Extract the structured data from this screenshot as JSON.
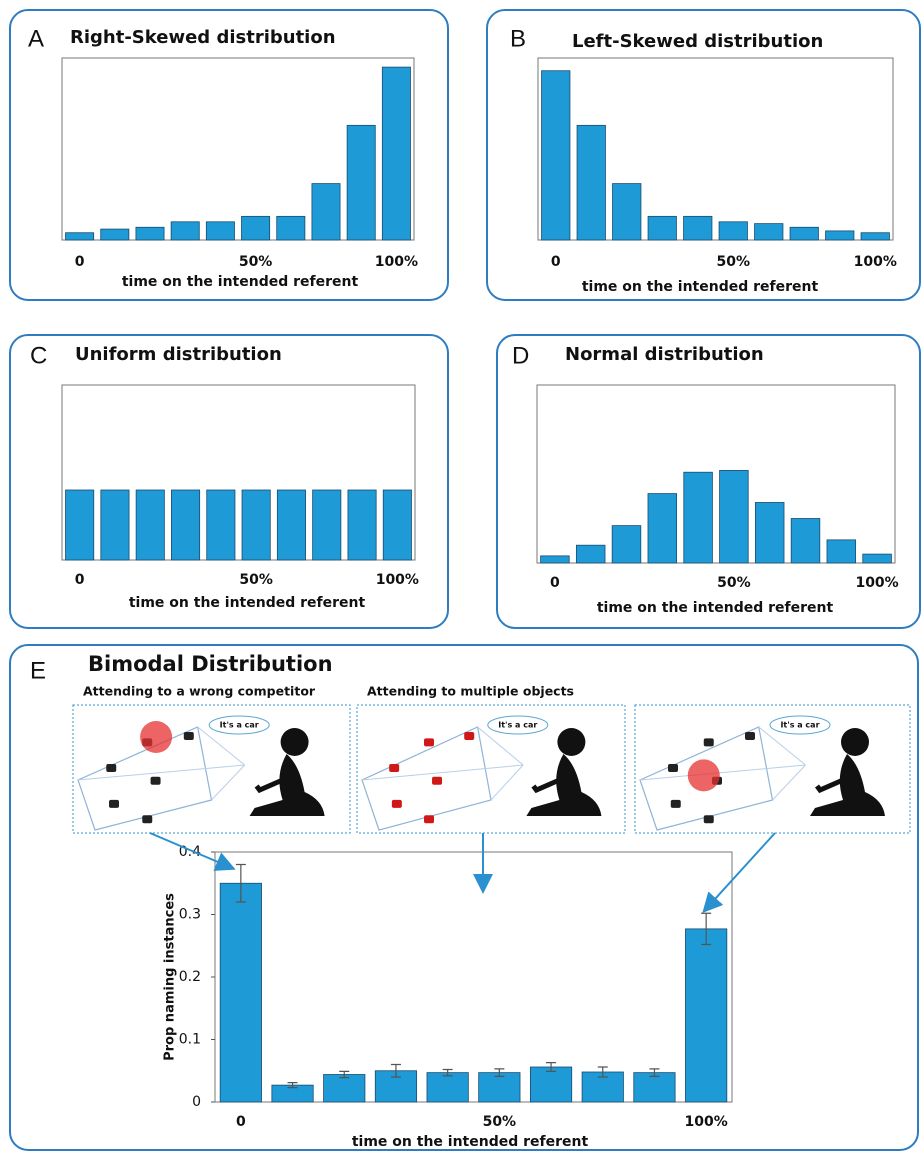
{
  "chart_data": [
    {
      "type": "bar",
      "label": "A",
      "title": "Right-Skewed distribution",
      "xlabel": "time on the intended referent",
      "categories": [
        "0",
        null,
        null,
        null,
        null,
        "50%",
        null,
        null,
        null,
        "100%"
      ],
      "values": [
        4,
        6,
        7,
        10,
        10,
        13,
        13,
        31,
        63,
        95
      ],
      "color": "#1e9bd7",
      "ylim": [
        0,
        100
      ]
    },
    {
      "type": "bar",
      "label": "B",
      "title": "Left-Skewed distribution",
      "xlabel": "time on the intended referent",
      "categories": [
        "0",
        null,
        null,
        null,
        null,
        "50%",
        null,
        null,
        null,
        "100%"
      ],
      "values": [
        93,
        63,
        31,
        13,
        13,
        10,
        9,
        7,
        5,
        4
      ],
      "color": "#1e9bd7",
      "ylim": [
        0,
        100
      ]
    },
    {
      "type": "bar",
      "label": "C",
      "title": "Uniform distribution",
      "xlabel": "time on the intended referent",
      "categories": [
        "0",
        null,
        null,
        null,
        null,
        "50%",
        null,
        null,
        null,
        "100%"
      ],
      "values": [
        40,
        40,
        40,
        40,
        40,
        40,
        40,
        40,
        40,
        40
      ],
      "color": "#1e9bd7",
      "ylim": [
        0,
        100
      ]
    },
    {
      "type": "bar",
      "label": "D",
      "title": "Normal distribution",
      "xlabel": "time on the intended referent",
      "categories": [
        "0",
        null,
        null,
        null,
        null,
        "50%",
        null,
        null,
        null,
        "100%"
      ],
      "values": [
        4,
        10,
        21,
        39,
        51,
        52,
        34,
        25,
        13,
        5
      ],
      "color": "#1e9bd7",
      "ylim": [
        0,
        100
      ]
    },
    {
      "type": "bar",
      "label": "E",
      "title": "Bimodal Distribution",
      "xlabel": "time on the intended referent",
      "ylabel": "Prop  naming instances",
      "categories": [
        "0",
        null,
        null,
        null,
        null,
        "50%",
        null,
        null,
        null,
        "100%"
      ],
      "values": [
        0.35,
        0.027,
        0.044,
        0.05,
        0.047,
        0.047,
        0.056,
        0.048,
        0.047,
        0.277
      ],
      "errors": [
        0.03,
        0.004,
        0.005,
        0.01,
        0.005,
        0.006,
        0.007,
        0.008,
        0.006,
        0.025
      ],
      "color": "#1e9bd7",
      "ylim": [
        0,
        0.4
      ],
      "yticks": [
        0,
        0.1,
        0.2,
        0.3,
        0.4
      ],
      "captions": [
        "Attending to a wrong competitor",
        "Attending to multiple objects"
      ],
      "bubbles": [
        "It's a car",
        "It's a car",
        "It's a car"
      ]
    }
  ]
}
